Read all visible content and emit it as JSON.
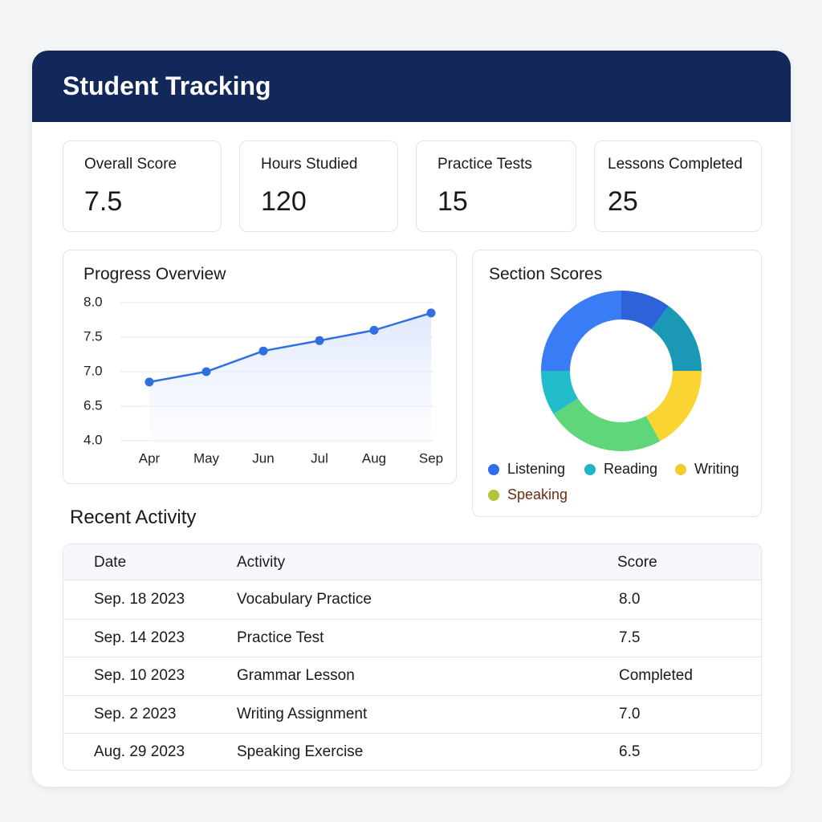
{
  "header": {
    "title": "Student Tracking"
  },
  "stats": [
    {
      "label": "Overall Score",
      "value": 7.5
    },
    {
      "label": "Hours Studied",
      "value": 120
    },
    {
      "label": "Practice Tests",
      "value": 15
    },
    {
      "label": "Lessons Completed",
      "value": 25
    }
  ],
  "progress_chart": {
    "type": "line",
    "title": "Progress Overview",
    "categories": [
      "Apr",
      "May",
      "Jun",
      "Jul",
      "Aug",
      "Sep"
    ],
    "values": [
      6.85,
      7.0,
      7.3,
      7.45,
      7.6,
      7.85
    ],
    "color": "#2f6fe0",
    "ylim": [
      4,
      8
    ],
    "yticks": [
      {
        "value": 8,
        "label": "8.0"
      },
      {
        "value": 7.5,
        "label": "7.5"
      },
      {
        "value": 7,
        "label": "7.0"
      },
      {
        "value": 6.5,
        "label": "6.5"
      },
      {
        "value": 4,
        "label": "4.0"
      }
    ],
    "scale": "tick-spaced",
    "grid": true,
    "area": true
  },
  "section_chart": {
    "type": "donut",
    "title": "Section Scores",
    "segments": [
      {
        "color": "#2d62d8",
        "value": 10
      },
      {
        "color": "#1a98b5",
        "value": 15
      },
      {
        "color": "#fad431",
        "value": 17
      },
      {
        "color": "#5fd67a",
        "value": 24
      },
      {
        "color": "#21bccb",
        "value": 9
      },
      {
        "color": "#3a7cf5",
        "value": 25
      }
    ],
    "legend": [
      {
        "name": "Listening",
        "color": "#2f6fef",
        "text_color": "#1a1a1a"
      },
      {
        "name": "Reading",
        "color": "#1fb5c4",
        "text_color": "#1a1a1a"
      },
      {
        "name": "Writing",
        "color": "#f5cc2a",
        "text_color": "#1a1a1a"
      },
      {
        "name": "Speaking",
        "color": "#b5c23a",
        "text_color": "#6b2e12"
      }
    ]
  },
  "activity": {
    "title": "Recent Activity",
    "columns": [
      "Date",
      "Activity",
      "Score"
    ],
    "rows": [
      [
        "Sep. 18 2023",
        "Vocabulary Practice",
        "8.0"
      ],
      [
        "Sep. 14 2023",
        "Practice Test",
        "7.5"
      ],
      [
        "Sep. 10 2023",
        "Grammar Lesson",
        "Completed"
      ],
      [
        "Sep. 2 2023",
        "Writing Assignment",
        "7.0"
      ],
      [
        "Aug. 29 2023",
        "Speaking Exercise",
        "6.5"
      ]
    ]
  }
}
